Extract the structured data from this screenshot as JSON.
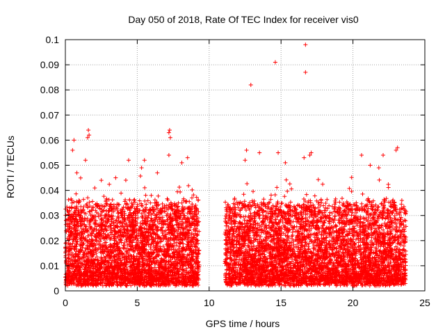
{
  "chart_data": {
    "type": "scatter",
    "title": "Day 050 of 2018, Rate Of TEC Index for receiver vis0",
    "xlabel": "GPS time / hours",
    "ylabel": "ROTI / TECUs",
    "xlim": [
      0,
      25
    ],
    "ylim": [
      0,
      0.1
    ],
    "xticks": [
      0,
      5,
      10,
      15,
      20,
      25
    ],
    "xtick_labels": [
      "0",
      "5",
      "10",
      "15",
      "20",
      "25"
    ],
    "yticks": [
      0,
      0.01,
      0.02,
      0.03,
      0.04,
      0.05,
      0.06,
      0.07,
      0.08,
      0.09,
      0.1
    ],
    "ytick_labels": [
      "0",
      "0.01",
      "0.02",
      "0.03",
      "0.04",
      "0.05",
      "0.06",
      "0.07",
      "0.08",
      "0.09",
      "0.1"
    ],
    "grid": true,
    "marker": "+",
    "color": "#ff0000",
    "series": [
      {
        "name": "vis0",
        "data_gaps_hours": [
          [
            9.3,
            11.1
          ]
        ],
        "bulk_segments": [
          {
            "x_range": [
              0.0,
              9.3
            ],
            "typical_y_range": [
              0.003,
              0.035
            ]
          },
          {
            "x_range": [
              11.1,
              23.7
            ],
            "typical_y_range": [
              0.003,
              0.035
            ]
          }
        ],
        "notable_points": [
          {
            "x": 0.05,
            "y": 0.028
          },
          {
            "x": 0.6,
            "y": 0.06
          },
          {
            "x": 0.5,
            "y": 0.056
          },
          {
            "x": 0.8,
            "y": 0.047
          },
          {
            "x": 1.4,
            "y": 0.052
          },
          {
            "x": 1.55,
            "y": 0.061
          },
          {
            "x": 1.6,
            "y": 0.064
          },
          {
            "x": 1.65,
            "y": 0.062
          },
          {
            "x": 2.5,
            "y": 0.044
          },
          {
            "x": 3.5,
            "y": 0.045
          },
          {
            "x": 4.4,
            "y": 0.052
          },
          {
            "x": 5.3,
            "y": 0.049
          },
          {
            "x": 5.5,
            "y": 0.052
          },
          {
            "x": 6.4,
            "y": 0.047
          },
          {
            "x": 7.2,
            "y": 0.063
          },
          {
            "x": 7.25,
            "y": 0.064
          },
          {
            "x": 7.3,
            "y": 0.061
          },
          {
            "x": 7.2,
            "y": 0.054
          },
          {
            "x": 8.1,
            "y": 0.051
          },
          {
            "x": 8.5,
            "y": 0.053
          },
          {
            "x": 8.8,
            "y": 0.037
          },
          {
            "x": 12.5,
            "y": 0.052
          },
          {
            "x": 12.6,
            "y": 0.056
          },
          {
            "x": 12.9,
            "y": 0.082
          },
          {
            "x": 13.5,
            "y": 0.055
          },
          {
            "x": 14.6,
            "y": 0.091
          },
          {
            "x": 14.8,
            "y": 0.055
          },
          {
            "x": 15.3,
            "y": 0.051
          },
          {
            "x": 16.7,
            "y": 0.098
          },
          {
            "x": 16.7,
            "y": 0.087
          },
          {
            "x": 17.0,
            "y": 0.054
          },
          {
            "x": 17.1,
            "y": 0.055
          },
          {
            "x": 16.6,
            "y": 0.053
          },
          {
            "x": 20.6,
            "y": 0.054
          },
          {
            "x": 21.2,
            "y": 0.05
          },
          {
            "x": 21.8,
            "y": 0.049
          },
          {
            "x": 22.1,
            "y": 0.054
          },
          {
            "x": 23.0,
            "y": 0.056
          },
          {
            "x": 23.1,
            "y": 0.057
          },
          {
            "x": 23.4,
            "y": 0.036
          }
        ]
      }
    ]
  }
}
